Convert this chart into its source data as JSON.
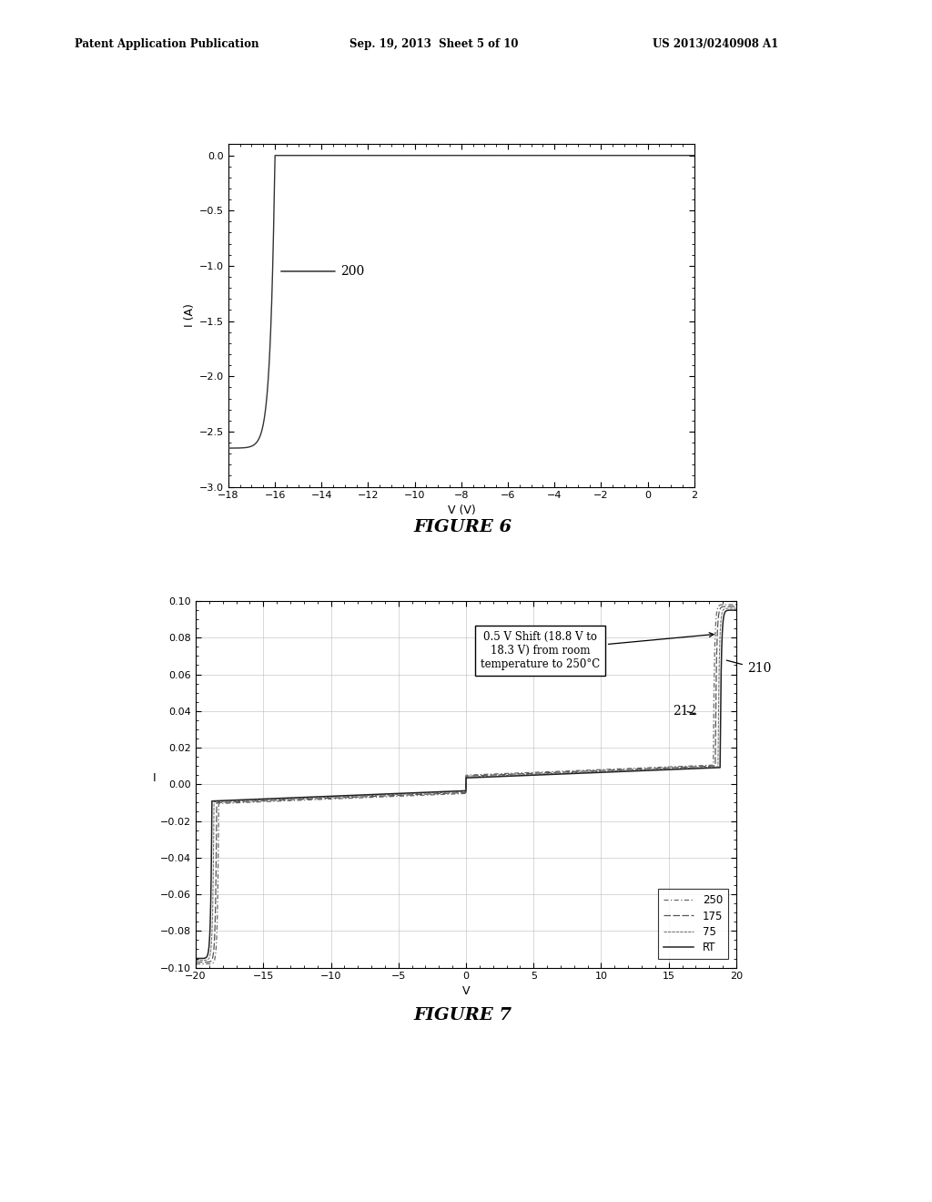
{
  "header_left": "Patent Application Publication",
  "header_mid": "Sep. 19, 2013  Sheet 5 of 10",
  "header_right": "US 2013/0240908 A1",
  "fig6_title": "FIGURE 6",
  "fig7_title": "FIGURE 7",
  "fig6_xlabel": "V (V)",
  "fig6_ylabel": "I (A)",
  "fig6_xlim": [
    -18,
    2
  ],
  "fig6_ylim": [
    -3.0,
    0.1
  ],
  "fig6_xticks": [
    -18,
    -16,
    -14,
    -12,
    -10,
    -8,
    -6,
    -4,
    -2,
    0,
    2
  ],
  "fig6_yticks": [
    0.0,
    -0.5,
    -1.0,
    -1.5,
    -2.0,
    -2.5,
    -3.0
  ],
  "fig6_label": "200",
  "fig7_xlabel": "V",
  "fig7_ylabel": "I",
  "fig7_xlim": [
    -20,
    20
  ],
  "fig7_ylim": [
    -0.1,
    0.1
  ],
  "fig7_xticks": [
    -20,
    -15,
    -10,
    -5,
    0,
    5,
    10,
    15,
    20
  ],
  "fig7_yticks": [
    -0.1,
    -0.08,
    -0.06,
    -0.04,
    -0.02,
    0,
    0.02,
    0.04,
    0.06,
    0.08,
    0.1
  ],
  "fig7_annotation": "0.5 V Shift (18.8 V to\n18.3 V) from room\ntemperature to 250°C",
  "fig7_label_210": "210",
  "fig7_label_212": "212",
  "bg_color": "#ffffff",
  "grid_color": "#bbbbbb"
}
